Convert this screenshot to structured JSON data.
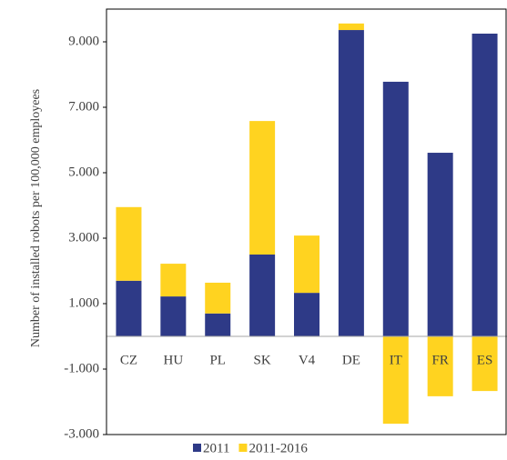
{
  "chart_data": {
    "type": "stacked_bar",
    "y_label": "Number of installed robots per 100,000 employees",
    "categories": [
      "CZ",
      "HU",
      "PL",
      "SK",
      "V4",
      "DE",
      "IT",
      "FR",
      "ES"
    ],
    "series": [
      {
        "name": "2011",
        "color": "#2e3a87",
        "values": [
          1700,
          1220,
          700,
          2500,
          1330,
          9360,
          7780,
          5610,
          9250
        ]
      },
      {
        "name": "2011-2016",
        "color": "#ffd320",
        "values": [
          2250,
          1000,
          940,
          4080,
          1750,
          200,
          -2670,
          -1830,
          -1670
        ]
      }
    ],
    "ylim": [
      -3000,
      10000
    ],
    "yticks": [
      {
        "value": -3000,
        "label": "-3.000"
      },
      {
        "value": -1000,
        "label": "-1.000"
      },
      {
        "value": 1000,
        "label": "1.000"
      },
      {
        "value": 3000,
        "label": "3.000"
      },
      {
        "value": 5000,
        "label": "5.000"
      },
      {
        "value": 7000,
        "label": "7.000"
      },
      {
        "value": 9000,
        "label": "9.000"
      }
    ],
    "legend": "bottom"
  }
}
